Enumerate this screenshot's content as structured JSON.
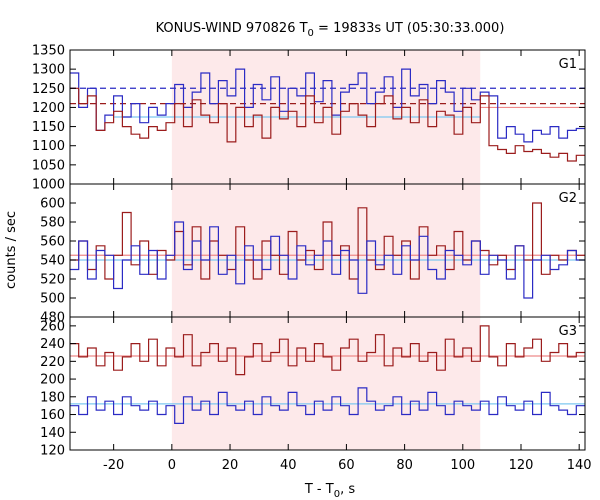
{
  "chart_data": {
    "type": "line",
    "title": "KONUS-WIND 970826 T",
    "title_sub": "0",
    "title_rest": " = 19833s UT (05:30:33.000)",
    "xlabel": "T - T",
    "xlabel_sub": "0",
    "xlabel_rest": ", s",
    "ylabel": "counts / sec",
    "xlim": [
      -35,
      142
    ],
    "xticks": [
      -20,
      0,
      20,
      40,
      60,
      80,
      100,
      120,
      140
    ],
    "xtick_labels": [
      "-20",
      "0",
      "20",
      "40",
      "60",
      "80",
      "100",
      "120",
      "140"
    ],
    "shaded_interval": [
      0,
      106
    ],
    "colors": {
      "shade": "#fde9ea",
      "dark_red": "#9b1c1c",
      "blue": "#2b2bc4",
      "light_red": "#ee8a8a",
      "light_blue": "#7ec8f0",
      "background": "#ffffff"
    },
    "panels": [
      {
        "name": "G1",
        "ylim": [
          1000,
          1350
        ],
        "yticks": [
          1000,
          1050,
          1100,
          1150,
          1200,
          1250,
          1300,
          1350
        ],
        "ytick_labels": [
          "1000",
          "1050",
          "1100",
          "1150",
          "1200",
          "1250",
          "1300",
          "1350"
        ],
        "series": [
          {
            "color": "blue",
            "x": [
              -35,
              -32,
              -29,
              -26,
              -23,
              -20,
              -17,
              -14,
              -11,
              -8,
              -5,
              -2,
              1,
              4,
              7,
              10,
              13,
              16,
              19,
              22,
              25,
              28,
              31,
              34,
              37,
              40,
              43,
              46,
              49,
              52,
              55,
              58,
              61,
              64,
              67,
              70,
              73,
              76,
              79,
              82,
              85,
              88,
              91,
              94,
              97,
              100,
              103,
              106,
              109,
              112,
              115,
              118,
              121,
              124,
              127,
              130,
              133,
              136,
              139
            ],
            "y": [
              1290,
              1200,
              1250,
              1140,
              1180,
              1230,
              1175,
              1210,
              1160,
              1200,
              1180,
              1210,
              1260,
              1200,
              1240,
              1290,
              1210,
              1270,
              1230,
              1300,
              1200,
              1260,
              1220,
              1280,
              1190,
              1250,
              1230,
              1290,
              1215,
              1270,
              1180,
              1240,
              1260,
              1290,
              1210,
              1240,
              1280,
              1200,
              1300,
              1230,
              1260,
              1210,
              1270,
              1240,
              1190,
              1250,
              1220,
              1240,
              1230,
              1120,
              1150,
              1130,
              1110,
              1140,
              1130,
              1150,
              1120,
              1140,
              1145
            ]
          },
          {
            "color": "dark_red",
            "x": [
              -35,
              -32,
              -29,
              -26,
              -23,
              -20,
              -17,
              -14,
              -11,
              -8,
              -5,
              -2,
              1,
              4,
              7,
              10,
              13,
              16,
              19,
              22,
              25,
              28,
              31,
              34,
              37,
              40,
              43,
              46,
              49,
              52,
              55,
              58,
              61,
              64,
              67,
              70,
              73,
              76,
              79,
              82,
              85,
              88,
              91,
              94,
              97,
              100,
              103,
              106,
              109,
              112,
              115,
              118,
              121,
              124,
              127,
              130,
              133,
              136,
              139
            ],
            "y": [
              1250,
              1210,
              1230,
              1140,
              1160,
              1190,
              1150,
              1130,
              1120,
              1150,
              1140,
              1160,
              1210,
              1150,
              1220,
              1180,
              1160,
              1210,
              1110,
              1200,
              1150,
              1180,
              1120,
              1200,
              1170,
              1190,
              1150,
              1230,
              1160,
              1200,
              1130,
              1190,
              1210,
              1180,
              1150,
              1210,
              1230,
              1170,
              1200,
              1160,
              1220,
              1150,
              1190,
              1180,
              1130,
              1200,
              1160,
              1230,
              1100,
              1090,
              1080,
              1100,
              1085,
              1090,
              1080,
              1070,
              1080,
              1060,
              1075
            ]
          }
        ],
        "levels": [
          {
            "color": "blue",
            "y": 1250,
            "x0": -35,
            "x1": 142,
            "dashed": true
          },
          {
            "color": "dark_red",
            "y": 1210,
            "x0": -35,
            "x1": 142,
            "dashed": true
          },
          {
            "color": "light_blue",
            "y": 1175,
            "x0": -20,
            "x1": 106,
            "dashed": false
          },
          {
            "color": "light_red",
            "y": 1200,
            "x0": 106,
            "x1": 142,
            "dashed": false
          }
        ]
      },
      {
        "name": "G2",
        "ylim": [
          480,
          620
        ],
        "yticks": [
          480,
          500,
          520,
          540,
          560,
          580,
          600
        ],
        "ytick_labels": [
          "480",
          "500",
          "520",
          "540",
          "560",
          "580",
          "600"
        ],
        "series": [
          {
            "color": "dark_red",
            "x": [
              -35,
              -32,
              -29,
              -26,
              -23,
              -20,
              -17,
              -14,
              -11,
              -8,
              -5,
              -2,
              1,
              4,
              7,
              10,
              13,
              16,
              19,
              22,
              25,
              28,
              31,
              34,
              37,
              40,
              43,
              46,
              49,
              52,
              55,
              58,
              61,
              64,
              67,
              70,
              73,
              76,
              79,
              82,
              85,
              88,
              91,
              94,
              97,
              100,
              103,
              106,
              109,
              112,
              115,
              118,
              121,
              124,
              127,
              130,
              133,
              136,
              139
            ],
            "y": [
              540,
              560,
              530,
              555,
              520,
              545,
              590,
              535,
              560,
              525,
              550,
              540,
              570,
              535,
              575,
              520,
              560,
              545,
              530,
              575,
              540,
              520,
              560,
              545,
              525,
              570,
              540,
              550,
              530,
              580,
              545,
              555,
              520,
              595,
              540,
              530,
              565,
              545,
              560,
              520,
              575,
              545,
              555,
              530,
              570,
              540,
              560,
              550,
              535,
              545,
              530,
              555,
              540,
              600,
              525,
              545,
              540,
              550,
              545
            ]
          },
          {
            "color": "blue",
            "x": [
              -35,
              -32,
              -29,
              -26,
              -23,
              -20,
              -17,
              -14,
              -11,
              -8,
              -5,
              -2,
              1,
              4,
              7,
              10,
              13,
              16,
              19,
              22,
              25,
              28,
              31,
              34,
              37,
              40,
              43,
              46,
              49,
              52,
              55,
              58,
              61,
              64,
              67,
              70,
              73,
              76,
              79,
              82,
              85,
              88,
              91,
              94,
              97,
              100,
              103,
              106,
              109,
              112,
              115,
              118,
              121,
              124,
              127,
              130,
              133,
              136,
              139
            ],
            "y": [
              530,
              560,
              520,
              550,
              545,
              510,
              540,
              555,
              525,
              550,
              520,
              545,
              580,
              530,
              560,
              540,
              575,
              525,
              545,
              515,
              555,
              540,
              530,
              565,
              545,
              520,
              555,
              535,
              545,
              560,
              525,
              550,
              540,
              505,
              560,
              535,
              545,
              525,
              555,
              540,
              565,
              530,
              520,
              550,
              545,
              535,
              560,
              525,
              545,
              540,
              520,
              555,
              500,
              540,
              545,
              530,
              535,
              550,
              540
            ]
          }
        ],
        "levels": [
          {
            "color": "light_red",
            "y": 545,
            "x0": -35,
            "x1": 142,
            "dashed": false
          },
          {
            "color": "light_blue",
            "y": 540,
            "x0": -35,
            "x1": 142,
            "dashed": false
          }
        ]
      },
      {
        "name": "G3",
        "ylim": [
          120,
          270
        ],
        "yticks": [
          120,
          140,
          160,
          180,
          200,
          220,
          240,
          260
        ],
        "ytick_labels": [
          "120",
          "140",
          "160",
          "180",
          "200",
          "220",
          "240",
          "260"
        ],
        "series": [
          {
            "color": "dark_red",
            "x": [
              -35,
              -32,
              -29,
              -26,
              -23,
              -20,
              -17,
              -14,
              -11,
              -8,
              -5,
              -2,
              1,
              4,
              7,
              10,
              13,
              16,
              19,
              22,
              25,
              28,
              31,
              34,
              37,
              40,
              43,
              46,
              49,
              52,
              55,
              58,
              61,
              64,
              67,
              70,
              73,
              76,
              79,
              82,
              85,
              88,
              91,
              94,
              97,
              100,
              103,
              106,
              109,
              112,
              115,
              118,
              121,
              124,
              127,
              130,
              133,
              136,
              139
            ],
            "y": [
              240,
              225,
              235,
              215,
              230,
              210,
              225,
              240,
              220,
              245,
              215,
              235,
              225,
              250,
              215,
              230,
              240,
              220,
              235,
              205,
              225,
              240,
              220,
              230,
              245,
              215,
              235,
              220,
              240,
              225,
              210,
              235,
              245,
              220,
              230,
              250,
              215,
              235,
              225,
              240,
              220,
              230,
              210,
              245,
              225,
              235,
              220,
              260,
              225,
              215,
              240,
              225,
              235,
              245,
              220,
              230,
              240,
              225,
              230
            ]
          },
          {
            "color": "blue",
            "x": [
              -35,
              -32,
              -29,
              -26,
              -23,
              -20,
              -17,
              -14,
              -11,
              -8,
              -5,
              -2,
              1,
              4,
              7,
              10,
              13,
              16,
              19,
              22,
              25,
              28,
              31,
              34,
              37,
              40,
              43,
              46,
              49,
              52,
              55,
              58,
              61,
              64,
              67,
              70,
              73,
              76,
              79,
              82,
              85,
              88,
              91,
              94,
              97,
              100,
              103,
              106,
              109,
              112,
              115,
              118,
              121,
              124,
              127,
              130,
              133,
              136,
              139
            ],
            "y": [
              170,
              160,
              180,
              165,
              175,
              160,
              180,
              170,
              165,
              175,
              160,
              170,
              150,
              180,
              165,
              175,
              160,
              185,
              170,
              165,
              175,
              160,
              180,
              170,
              165,
              185,
              170,
              160,
              175,
              165,
              180,
              170,
              160,
              190,
              175,
              165,
              170,
              180,
              160,
              175,
              165,
              185,
              170,
              160,
              175,
              170,
              165,
              175,
              160,
              180,
              170,
              165,
              175,
              160,
              185,
              170,
              165,
              160,
              170
            ]
          }
        ],
        "levels": [
          {
            "color": "light_red",
            "y": 226,
            "x0": -35,
            "x1": 142,
            "dashed": false
          },
          {
            "color": "light_blue",
            "y": 172,
            "x0": -35,
            "x1": 142,
            "dashed": false
          }
        ]
      }
    ]
  }
}
